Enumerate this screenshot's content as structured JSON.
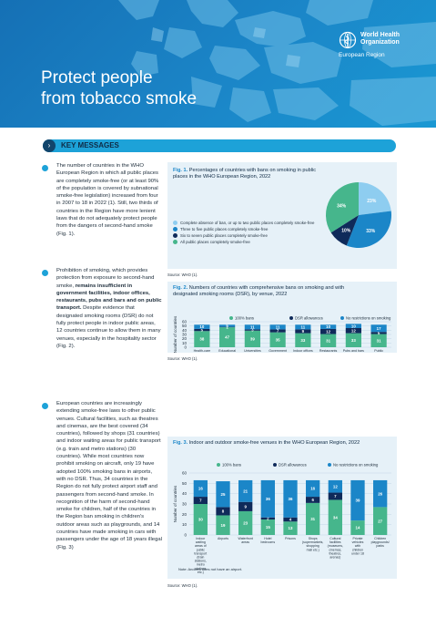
{
  "header": {
    "title_line1": "Protect people",
    "title_line2": "from tobacco smoke",
    "org_line1": "World Health",
    "org_line2": "Organization",
    "region": "European Region"
  },
  "key_messages": {
    "heading": "KEY MESSAGES",
    "paragraphs": [
      [
        {
          "t": "The number of countries in the WHO European Region in which all public places are completely smoke-free (or at least 90% of the population is covered by subnational smoke-free legislation) increased from four in 2007 to 18 in 2022 (1). Still, two thirds of countries in the Region have more lenient laws that do not adequately protect people from the dangers of second-hand smoke (Fig. 1).",
          "b": false
        }
      ],
      [
        {
          "t": "Prohibition of smoking, which provides protection from exposure to second-hand smoke, ",
          "b": false
        },
        {
          "t": "remains insufficient in government facilities, indoor offices, restaurants, pubs and bars and on public transport.",
          "b": true
        },
        {
          "t": " Despite evidence that designated smoking rooms (DSR) do not fully protect people in indoor public areas, 12 countries continue to allow them in many venues, especially in the hospitality sector (Fig. 2).",
          "b": false
        }
      ],
      [
        {
          "t": "European countries are increasingly extending smoke-free laws to other public venues. Cultural facilities, such as theatres and cinemas, are the best covered (34 countries), followed by shops (31 countries) and indoor waiting areas for public transport (e.g. train and metro stations) (30 countries). While most countries now prohibit smoking on aircraft, only 19 have adopted 100% smoking bans in airports, with no DSR. Thus, 34 countries in the Region do not fully protect airport staff and passengers from second-hand smoke. In recognition of the harm of second-hand smoke for children, half of the countries in the Region ban smoking in children's outdoor areas such as playgrounds, and 14 countries have made smoking in cars with passengers under the age of 18 years illegal (Fig. 3)",
          "b": false
        }
      ]
    ]
  },
  "fig1": {
    "label": "Fig. 1.",
    "title": "Percentages of countries with bans on smoking in public places in the WHO European Region, 2022",
    "source": "Source: WHO (1).",
    "chart_data": {
      "type": "pie",
      "title": "Percentages of countries with bans on smoking in public places in the WHO European Region, 2022",
      "slices": [
        {
          "name": "Complete absence of ban, or up to two public places completely smoke-free",
          "value": 23,
          "label": "23%",
          "color": "#8ecdf0"
        },
        {
          "name": "Three to five public places completely smoke-free",
          "value": 33,
          "label": "33%",
          "color": "#1b86c8"
        },
        {
          "name": "Six to seven public places completely smoke-free",
          "value": 10,
          "label": "10%",
          "color": "#0f2a5a"
        },
        {
          "name": "All public places completely smoke-free",
          "value": 34,
          "label": "34%",
          "color": "#46b68c"
        }
      ]
    }
  },
  "fig2": {
    "label": "Fig. 2.",
    "title": "Numbers of countries with comprehensive bans on smoking and with designated smoking rooms (DSR), by venue, 2022",
    "source": "Source: WHO (1).",
    "chart_data": {
      "type": "bar",
      "stacked": true,
      "ylabel": "Number of countries",
      "ylim": [
        0,
        60
      ],
      "yticks": [
        0,
        10,
        20,
        30,
        40,
        50,
        60
      ],
      "legend_position": "top",
      "categories": [
        "Health-care facilities",
        "Educational facilities except universities",
        "Universities",
        "Government facilities",
        "Indoor offices",
        "Restaurants",
        "Pubs and bars",
        "Public transport"
      ],
      "series": [
        {
          "name": "100% bans",
          "color": "#46b68c",
          "values": [
            38,
            47,
            39,
            35,
            33,
            31,
            33,
            31
          ]
        },
        {
          "name": "DSR allowances",
          "color": "#0f2a5a",
          "values": [
            5,
            1,
            3,
            7,
            9,
            12,
            12,
            5
          ]
        },
        {
          "name": "No restrictions on smoking",
          "color": "#1b86c8",
          "values": [
            10,
            5,
            11,
            11,
            11,
            10,
            10,
            17
          ]
        }
      ]
    }
  },
  "fig3": {
    "label": "Fig. 3.",
    "title": "Indoor and outdoor smoke-free venues in the WHO European Region, 2022",
    "note": "Note: Andorra does not have an airport.",
    "source": "Source: WHO (1).",
    "chart_data": {
      "type": "bar",
      "stacked": true,
      "ylabel": "Number of countries",
      "ylim": [
        0,
        60
      ],
      "yticks": [
        0,
        10,
        20,
        30,
        40,
        50,
        60
      ],
      "legend_position": "top",
      "categories": [
        "Indoor waiting areas of public transport (train stations, metro stations etc.)",
        "Airports",
        "Waterfront areas",
        "Hotel bedrooms",
        "Prisons",
        "Shops (supermarkets, shopping mall etc.)",
        "Cultural facilities (museums, cinemas, theatres, arenas)",
        "Private vehicles with children under 18",
        "Children playgrounds/ parks"
      ],
      "series": [
        {
          "name": "100% bans",
          "color": "#46b68c",
          "values": [
            30,
            19,
            23,
            15,
            13,
            31,
            34,
            14,
            27
          ]
        },
        {
          "name": "DSR allowances",
          "color": "#0f2a5a",
          "values": [
            7,
            8,
            9,
            2,
            4,
            6,
            7,
            0,
            0
          ]
        },
        {
          "name": "No restrictions on smoking",
          "color": "#1b86c8",
          "values": [
            16,
            25,
            21,
            36,
            36,
            16,
            12,
            39,
            26
          ]
        }
      ]
    }
  }
}
